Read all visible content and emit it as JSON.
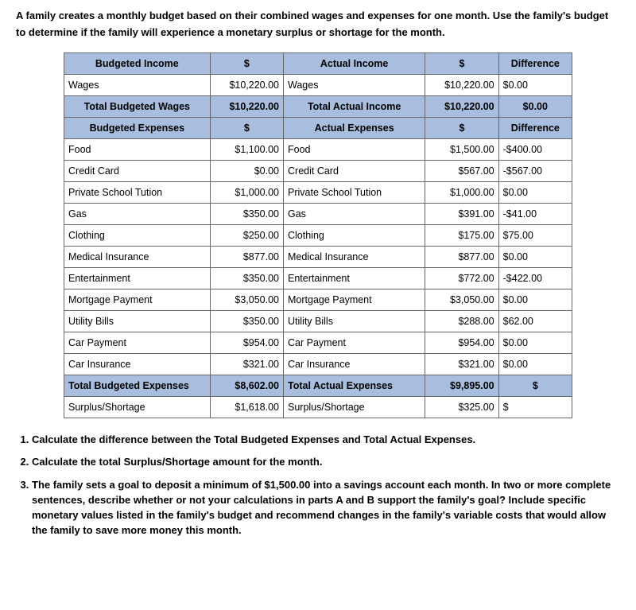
{
  "intro": "A family creates a monthly budget based on their combined wages and expenses for one month. Use the family's budget to determine if the family will experience a monetary surplus or shortage for the month.",
  "table": {
    "headers": {
      "budgeted_income": "Budgeted Income",
      "actual_income": "Actual Income",
      "budgeted_expenses": "Budgeted Expenses",
      "actual_expenses": "Actual Expenses",
      "difference": "Difference",
      "dollar": "$"
    },
    "income": {
      "row_label_b": "Wages",
      "row_val_b": "$10,220.00",
      "row_label_a": "Wages",
      "row_val_a": "$10,220.00",
      "row_diff": "$0.00",
      "total_label_b": "Total Budgeted Wages",
      "total_val_b": "$10,220.00",
      "total_label_a": "Total Actual Income",
      "total_val_a": "$10,220.00",
      "total_diff": "$0.00"
    },
    "expenses": [
      {
        "bl": "Food",
        "bv": "$1,100.00",
        "al": "Food",
        "av": "$1,500.00",
        "d": "-$400.00"
      },
      {
        "bl": "Credit Card",
        "bv": "$0.00",
        "al": "Credit Card",
        "av": "$567.00",
        "d": "-$567.00"
      },
      {
        "bl": "Private School Tution",
        "bv": "$1,000.00",
        "al": "Private School Tution",
        "av": "$1,000.00",
        "d": "$0.00"
      },
      {
        "bl": "Gas",
        "bv": "$350.00",
        "al": "Gas",
        "av": "$391.00",
        "d": "-$41.00"
      },
      {
        "bl": "Clothing",
        "bv": "$250.00",
        "al": "Clothing",
        "av": "$175.00",
        "d": "$75.00"
      },
      {
        "bl": "Medical Insurance",
        "bv": "$877.00",
        "al": "Medical Insurance",
        "av": "$877.00",
        "d": "$0.00"
      },
      {
        "bl": "Entertainment",
        "bv": "$350.00",
        "al": "Entertainment",
        "av": "$772.00",
        "d": "-$422.00"
      },
      {
        "bl": "Mortgage Payment",
        "bv": "$3,050.00",
        "al": "Mortgage Payment",
        "av": "$3,050.00",
        "d": "$0.00"
      },
      {
        "bl": "Utility Bills",
        "bv": "$350.00",
        "al": "Utility Bills",
        "av": "$288.00",
        "d": "$62.00"
      },
      {
        "bl": "Car Payment",
        "bv": "$954.00",
        "al": "Car Payment",
        "av": "$954.00",
        "d": "$0.00"
      },
      {
        "bl": "Car Insurance",
        "bv": "$321.00",
        "al": "Car Insurance",
        "av": "$321.00",
        "d": "$0.00"
      }
    ],
    "expense_totals": {
      "label_b": "Total Budgeted Expenses",
      "val_b": "$8,602.00",
      "label_a": "Total Actual Expenses",
      "val_a": "$9,895.00",
      "diff": "$"
    },
    "surplus": {
      "label_b": "Surplus/Shortage",
      "val_b": "$1,618.00",
      "label_a": "Surplus/Shortage",
      "val_a": "$325.00",
      "diff": "$"
    }
  },
  "questions": {
    "q1": "Calculate the difference between the Total Budgeted Expenses and Total Actual Expenses.",
    "q2": "Calculate the total Surplus/Shortage amount for the month.",
    "q3": "The family sets a goal to deposit a minimum of $1,500.00 into a savings account each month. In two or more complete sentences, describe whether or not your calculations in parts A and B support the family's goal? Include specific monetary values listed in the family's budget and recommend changes in the family's variable costs that would allow the family to save more money this month."
  }
}
